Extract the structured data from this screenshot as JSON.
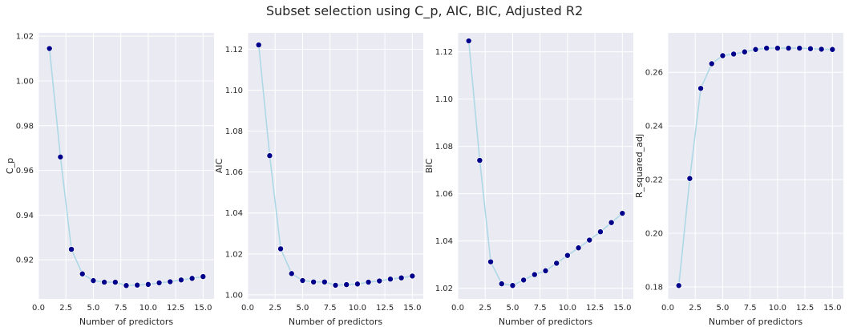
{
  "suptitle": "Subset selection using C_p, AIC, BIC, Adjusted R2",
  "colors": {
    "panel_bg": "#eaeaf2",
    "grid": "#ffffff",
    "line": "#add8e6",
    "marker": "#00008b"
  },
  "chart_data": [
    {
      "type": "scatter",
      "xlabel": "Number of predictors",
      "ylabel": "C_p",
      "xlim": [
        0,
        16
      ],
      "ylim": [
        0.9025,
        1.0215
      ],
      "xticks": [
        0.0,
        2.5,
        5.0,
        7.5,
        10.0,
        12.5,
        15.0
      ],
      "xtick_labels": [
        "0.0",
        "2.5",
        "5.0",
        "7.5",
        "10.0",
        "12.5",
        "15.0"
      ],
      "yticks": [
        0.92,
        0.94,
        0.96,
        0.98,
        1.0,
        1.02
      ],
      "ytick_labels": [
        "0.92",
        "0.94",
        "0.96",
        "0.98",
        "1.00",
        "1.02"
      ],
      "grid": true,
      "x": [
        1,
        2,
        3,
        4,
        5,
        6,
        7,
        8,
        9,
        10,
        11,
        12,
        13,
        14,
        15
      ],
      "y": [
        1.0145,
        0.966,
        0.9247,
        0.9137,
        0.9107,
        0.91,
        0.91,
        0.9085,
        0.9087,
        0.909,
        0.9097,
        0.9102,
        0.911,
        0.9117,
        0.9125
      ]
    },
    {
      "type": "scatter",
      "xlabel": "Number of predictors",
      "ylabel": "AIC",
      "xlim": [
        0,
        16
      ],
      "ylim": [
        0.998,
        1.128
      ],
      "xticks": [
        0.0,
        2.5,
        5.0,
        7.5,
        10.0,
        12.5,
        15.0
      ],
      "xtick_labels": [
        "0.0",
        "2.5",
        "5.0",
        "7.5",
        "10.0",
        "12.5",
        "15.0"
      ],
      "yticks": [
        1.0,
        1.02,
        1.04,
        1.06,
        1.08,
        1.1,
        1.12
      ],
      "ytick_labels": [
        "1.00",
        "1.02",
        "1.04",
        "1.06",
        "1.08",
        "1.10",
        "1.12"
      ],
      "grid": true,
      "x": [
        1,
        2,
        3,
        4,
        5,
        6,
        7,
        8,
        9,
        10,
        11,
        12,
        13,
        14,
        15
      ],
      "y": [
        1.1221,
        1.068,
        1.0225,
        1.0104,
        1.007,
        1.0063,
        1.0063,
        1.0047,
        1.005,
        1.0053,
        1.0062,
        1.0068,
        1.0077,
        1.0083,
        1.0092
      ]
    },
    {
      "type": "scatter",
      "xlabel": "Number of predictors",
      "ylabel": "BIC",
      "xlim": [
        0,
        16
      ],
      "ylim": [
        1.0155,
        1.128
      ],
      "xticks": [
        0.0,
        2.5,
        5.0,
        7.5,
        10.0,
        12.5,
        15.0
      ],
      "xtick_labels": [
        "0.0",
        "2.5",
        "5.0",
        "7.5",
        "10.0",
        "12.5",
        "15.0"
      ],
      "yticks": [
        1.02,
        1.04,
        1.06,
        1.08,
        1.1,
        1.12
      ],
      "ytick_labels": [
        "1.02",
        "1.04",
        "1.06",
        "1.08",
        "1.10",
        "1.12"
      ],
      "grid": true,
      "x": [
        1,
        2,
        3,
        4,
        5,
        6,
        7,
        8,
        9,
        10,
        11,
        12,
        13,
        14,
        15
      ],
      "y": [
        1.1246,
        1.0741,
        1.0312,
        1.0219,
        1.0212,
        1.0235,
        1.0258,
        1.0274,
        1.0306,
        1.0339,
        1.0371,
        1.0404,
        1.0439,
        1.0478,
        1.0517
      ]
    },
    {
      "type": "scatter",
      "xlabel": "Number of predictors",
      "ylabel": "R_squared_adj",
      "xlim": [
        0,
        16
      ],
      "ylim": [
        0.1755,
        0.2747
      ],
      "xticks": [
        0.0,
        2.5,
        5.0,
        7.5,
        10.0,
        12.5,
        15.0
      ],
      "xtick_labels": [
        "0.0",
        "2.5",
        "5.0",
        "7.5",
        "10.0",
        "12.5",
        "15.0"
      ],
      "yticks": [
        0.18,
        0.2,
        0.22,
        0.24,
        0.26
      ],
      "ytick_labels": [
        "0.18",
        "0.20",
        "0.22",
        "0.24",
        "0.26"
      ],
      "grid": true,
      "x": [
        1,
        2,
        3,
        4,
        5,
        6,
        7,
        8,
        9,
        10,
        11,
        12,
        13,
        14,
        15
      ],
      "y": [
        0.1805,
        0.2204,
        0.254,
        0.2632,
        0.2662,
        0.2668,
        0.2676,
        0.2685,
        0.269,
        0.269,
        0.269,
        0.269,
        0.2688,
        0.2686,
        0.2685
      ]
    }
  ]
}
